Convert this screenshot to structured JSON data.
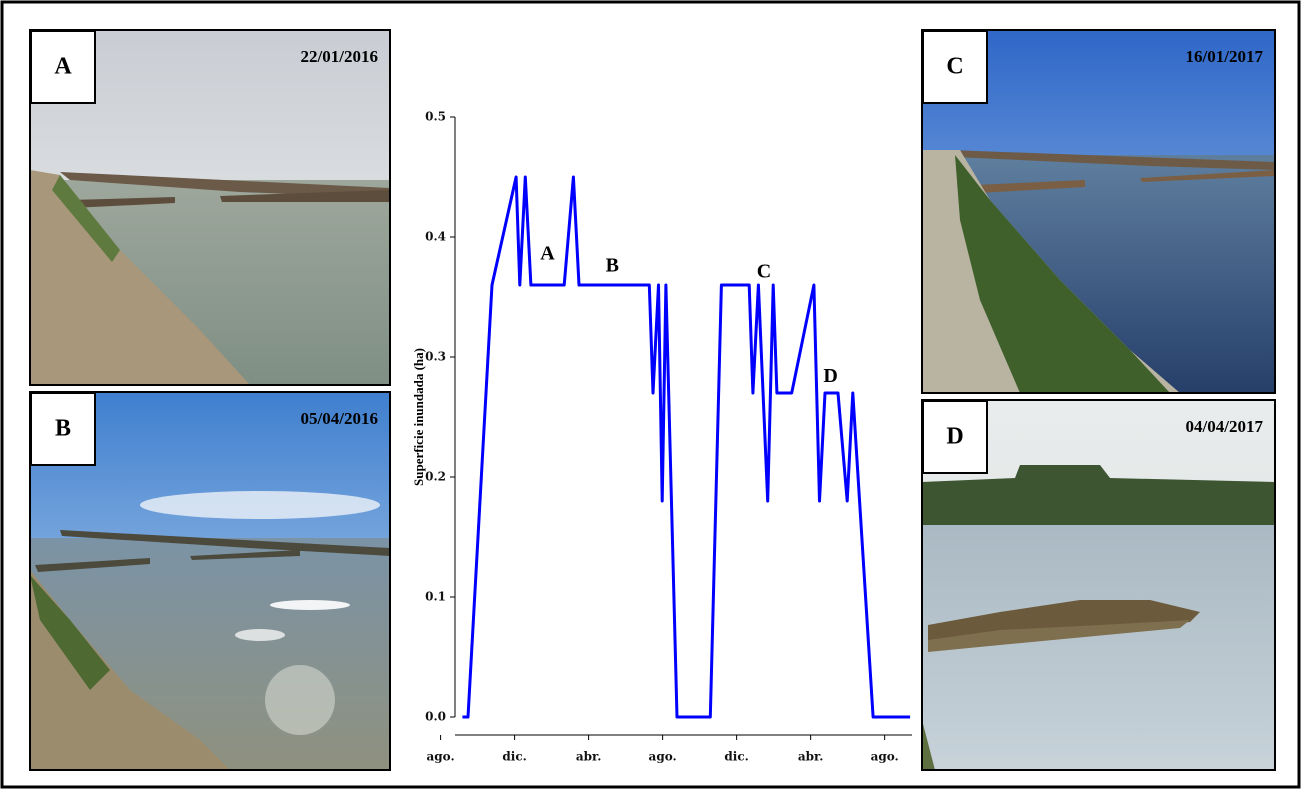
{
  "chart_data": {
    "type": "line",
    "y_label": "Superficie inundada (ha)",
    "color": "#0000ff",
    "x": [
      0.8,
      1.1,
      2.4,
      3.7,
      3.9,
      4.2,
      4.5,
      6.3,
      6.8,
      7.1,
      10.9,
      11.1,
      11.4,
      11.6,
      11.8,
      12.4,
      14.2,
      14.8,
      16.3,
      16.5,
      16.8,
      17.3,
      17.6,
      17.8,
      18.6,
      19.8,
      20.1,
      20.4,
      21.1,
      21.6,
      21.9,
      23.0,
      25.0
    ],
    "values": [
      0,
      0,
      0.36,
      0.45,
      0.36,
      0.45,
      0.36,
      0.36,
      0.45,
      0.36,
      0.36,
      0.27,
      0.36,
      0.18,
      0.36,
      0,
      0,
      0.36,
      0.36,
      0.27,
      0.36,
      0.18,
      0.36,
      0.27,
      0.27,
      0.36,
      0.18,
      0.27,
      0.27,
      0.18,
      0.27,
      0,
      0
    ],
    "xlim": [
      0.4,
      25.1
    ],
    "xticks": [
      {
        "value": 0,
        "label": "ago."
      },
      {
        "value": 4,
        "label": "dic."
      },
      {
        "value": 8,
        "label": "abr."
      },
      {
        "value": 12,
        "label": "ago."
      },
      {
        "value": 16,
        "label": "dic."
      },
      {
        "value": 20,
        "label": "abr."
      },
      {
        "value": 24,
        "label": "ago."
      }
    ],
    "ylim": [
      0,
      0.5
    ],
    "yticks": [
      {
        "value": 0,
        "label": "0.0"
      },
      0.1,
      0.2,
      0.3,
      0.4,
      0.5
    ],
    "annotations": [
      {
        "text": "A",
        "x": 5.4,
        "y": 0.385
      },
      {
        "text": "B",
        "x": 8.9,
        "y": 0.375
      },
      {
        "text": "C",
        "x": 17.1,
        "y": 0.37
      },
      {
        "text": "D",
        "x": 20.7,
        "y": 0.283
      }
    ]
  },
  "photos": [
    {
      "label": "A",
      "date": "22/01/2016"
    },
    {
      "label": "B",
      "date": "05/04/2016"
    },
    {
      "label": "C",
      "date": "16/01/2017"
    },
    {
      "label": "D",
      "date": "04/04/2017"
    }
  ]
}
